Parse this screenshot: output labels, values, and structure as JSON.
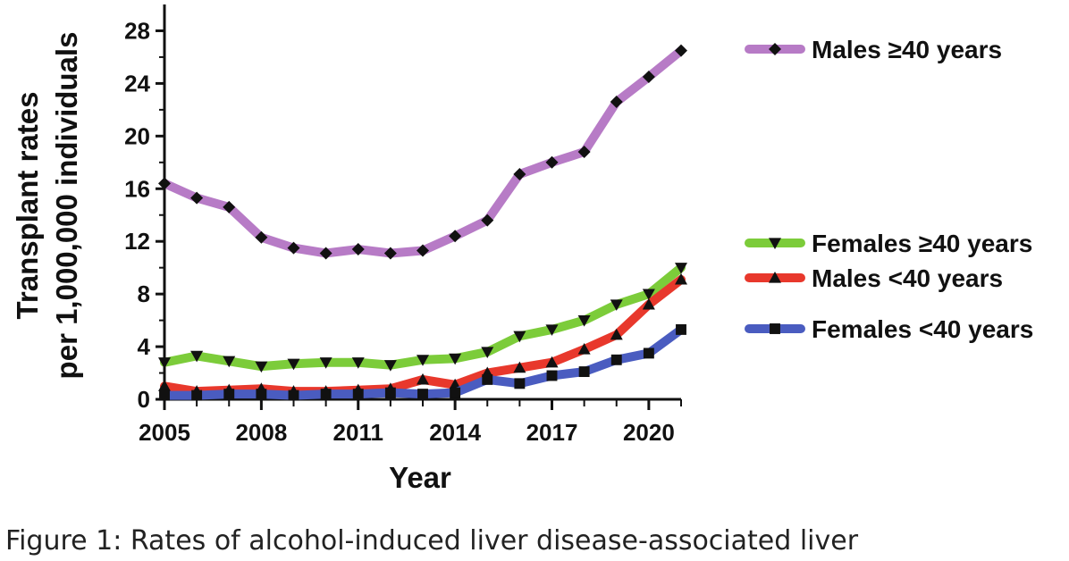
{
  "caption": "Figure 1: Rates of alcohol-induced liver disease-associated liver",
  "chart_data": {
    "type": "line",
    "xlabel": "Year",
    "ylabel": [
      "Transplant rates",
      "per 1,000,000 individuals"
    ],
    "xlim": [
      2005,
      2021
    ],
    "ylim": [
      0,
      30
    ],
    "xticks": [
      "2005",
      "2008",
      "2011",
      "2014",
      "2017",
      "2020"
    ],
    "yticks": [
      "0",
      "4",
      "8",
      "12",
      "16",
      "20",
      "24",
      "28"
    ],
    "x": [
      2005,
      2006,
      2007,
      2008,
      2009,
      2010,
      2011,
      2012,
      2013,
      2014,
      2015,
      2016,
      2017,
      2018,
      2019,
      2020,
      2021
    ],
    "grid": false,
    "legend_position": "right",
    "series": [
      {
        "name": "Males ≥40 years",
        "color": "#b77bc6",
        "marker": "diamond",
        "values": [
          16.4,
          15.3,
          14.6,
          12.3,
          11.5,
          11.1,
          11.4,
          11.1,
          11.3,
          12.4,
          13.6,
          17.1,
          18.0,
          18.8,
          22.6,
          24.5,
          26.5
        ]
      },
      {
        "name": "Females ≥40 years",
        "color": "#7ccc3a",
        "marker": "triangle-down",
        "values": [
          2.8,
          3.3,
          2.9,
          2.5,
          2.7,
          2.8,
          2.8,
          2.6,
          3.0,
          3.1,
          3.6,
          4.8,
          5.3,
          6.0,
          7.2,
          8.0,
          10.0
        ]
      },
      {
        "name": "Males <40 years",
        "color": "#e8382c",
        "marker": "triangle-up",
        "values": [
          1.0,
          0.6,
          0.7,
          0.8,
          0.6,
          0.6,
          0.7,
          0.8,
          1.5,
          1.1,
          2.0,
          2.4,
          2.8,
          3.8,
          4.9,
          7.2,
          9.1
        ]
      },
      {
        "name": "Females <40 years",
        "color": "#4a5cc0",
        "marker": "square",
        "values": [
          0.3,
          0.3,
          0.4,
          0.4,
          0.3,
          0.4,
          0.4,
          0.5,
          0.4,
          0.5,
          1.5,
          1.2,
          1.8,
          2.1,
          3.0,
          3.5,
          5.3
        ]
      }
    ]
  }
}
